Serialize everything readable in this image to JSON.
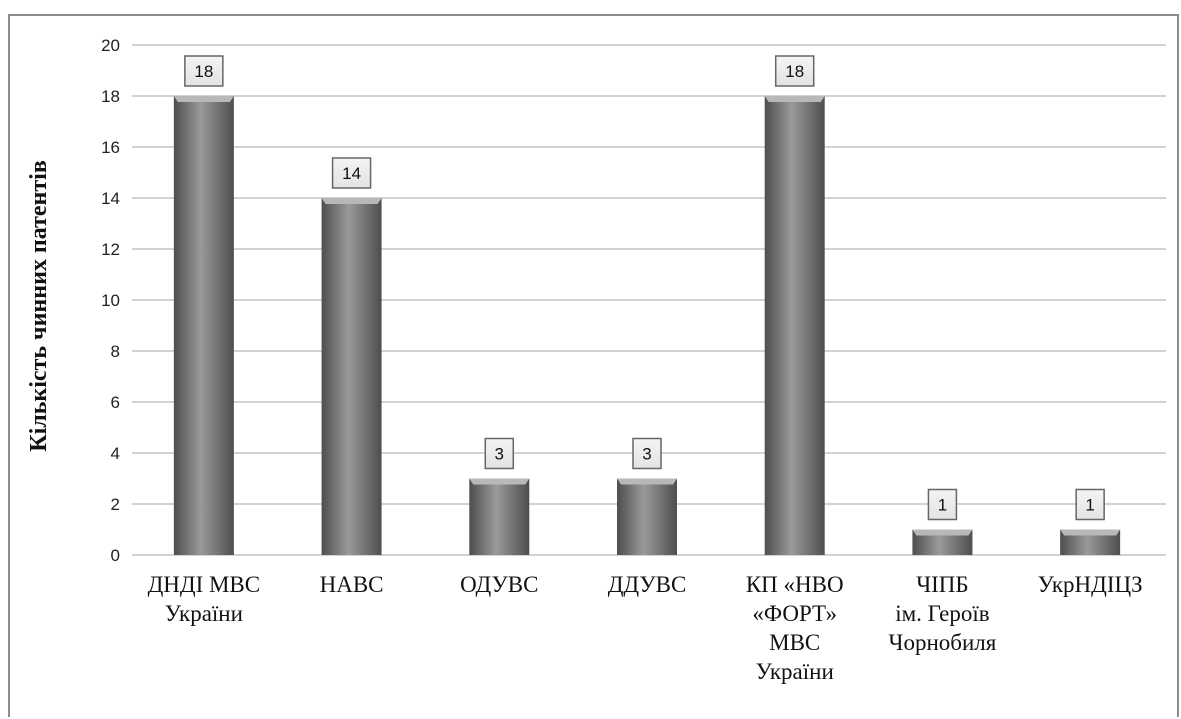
{
  "chart_data": {
    "type": "bar",
    "title": "",
    "xlabel": "",
    "ylabel": "Кількість чинних патентів",
    "ylim": [
      0,
      20
    ],
    "yticks": [
      0,
      2,
      4,
      6,
      8,
      10,
      12,
      14,
      16,
      18,
      20
    ],
    "grid": true,
    "categories": [
      [
        "ДНДІ МВС",
        "України"
      ],
      [
        "НАВС"
      ],
      [
        "ОДУВС"
      ],
      [
        "ДДУВС"
      ],
      [
        "КП «НВО",
        "«ФОРТ»",
        "МВС",
        "України"
      ],
      [
        "ЧІПБ",
        "ім. Героїв",
        "Чорнобиля"
      ],
      [
        "УкрНДІЦЗ"
      ]
    ],
    "values": [
      18,
      14,
      3,
      3,
      18,
      1,
      1
    ],
    "colors": {
      "bar_light": "#9a9a9a",
      "bar_dark": "#4e4e4e",
      "bar_top": "#b8b8b8",
      "grid": "#a6a6a6",
      "label_fill": "#e3e3e3",
      "label_border": "#666666"
    }
  }
}
